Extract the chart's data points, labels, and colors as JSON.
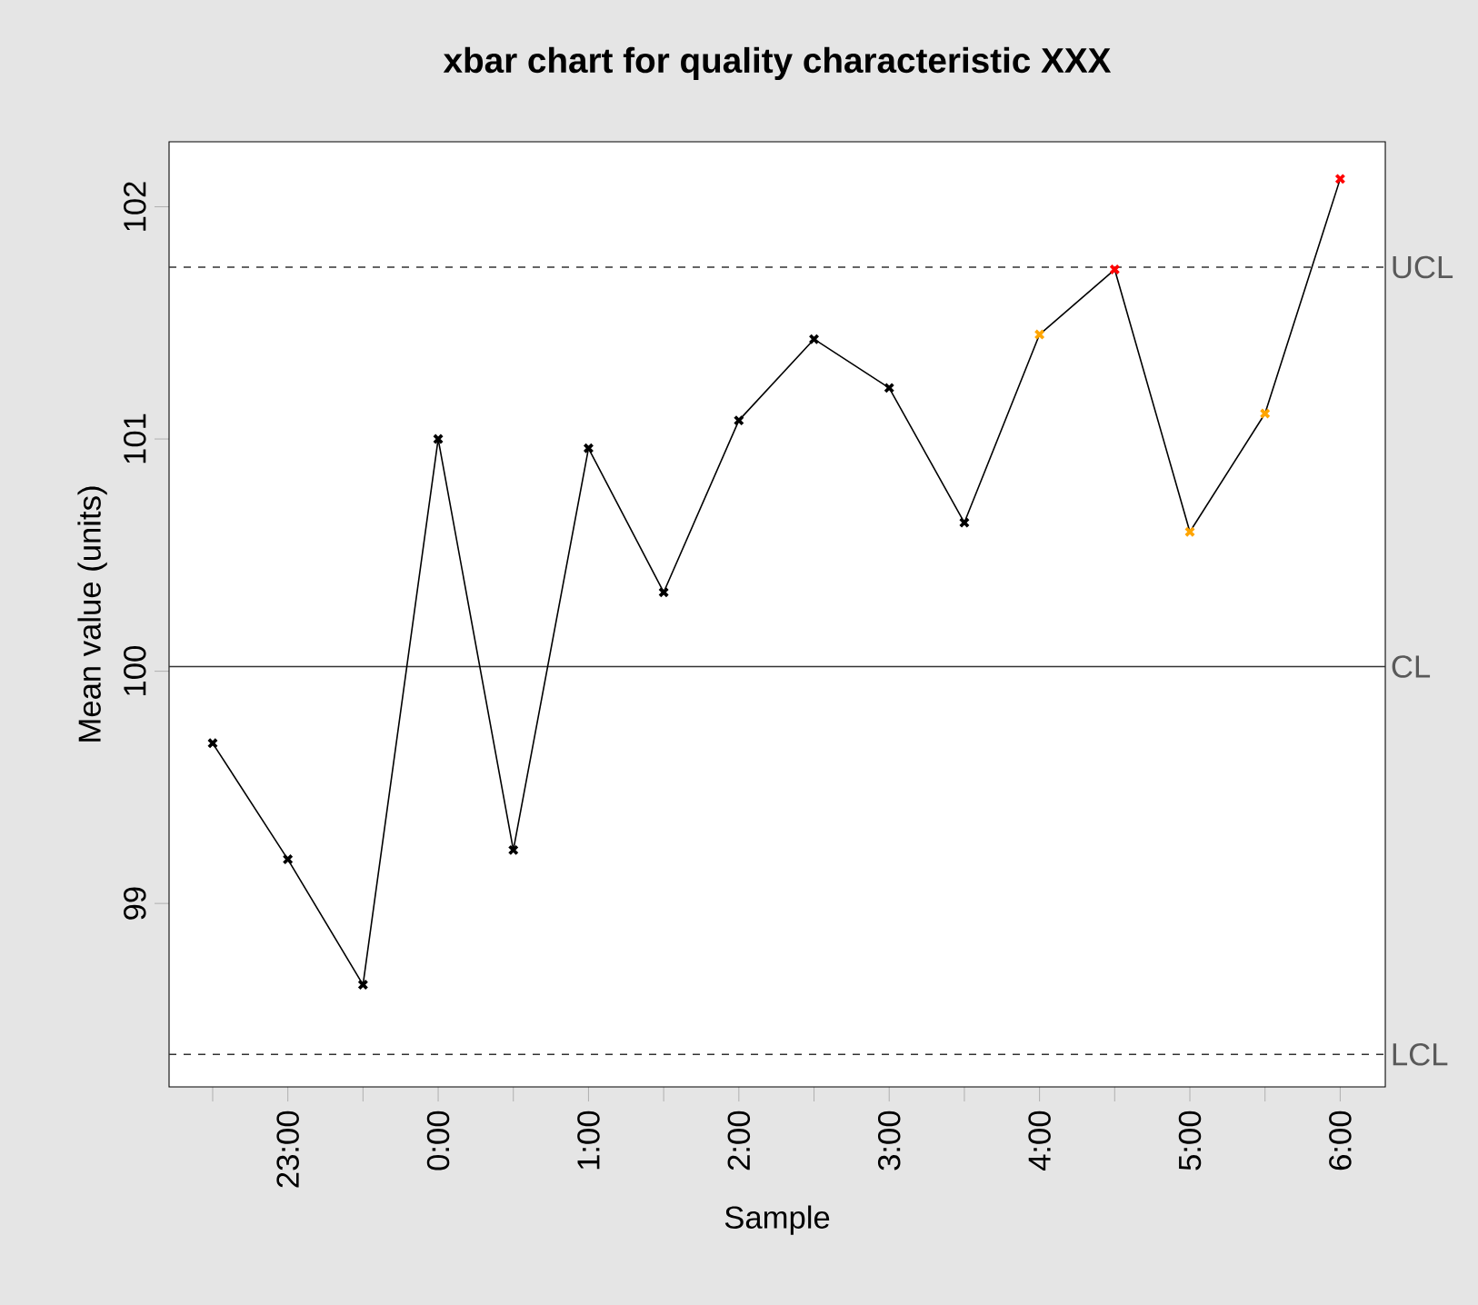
{
  "chart_data": {
    "type": "line",
    "title": "xbar chart for quality characteristic XXX",
    "xlabel": "Sample",
    "ylabel": "Mean value (units)",
    "categories": [
      null,
      "23:00",
      null,
      "0:00",
      null,
      "1:00",
      null,
      "2:00",
      null,
      "3:00",
      null,
      "4:00",
      null,
      "5:00",
      null,
      "6:00"
    ],
    "series": [
      {
        "color": "#000000",
        "colors": [
          "#000000",
          "#000000",
          "#000000",
          "#000000",
          "#000000",
          "#000000",
          "#000000",
          "#000000",
          "#000000",
          "#000000",
          "#000000",
          "#ffa500",
          "#ff0000",
          "#ffa500",
          "#ffa500",
          "#ff0000"
        ],
        "values": [
          99.69,
          99.19,
          98.65,
          101.0,
          99.23,
          100.96,
          100.34,
          101.08,
          101.43,
          101.22,
          100.64,
          101.45,
          101.73,
          100.6,
          101.11,
          102.12
        ]
      }
    ],
    "ylim": [
      98.21,
      102.28
    ],
    "yticks": [
      99,
      100,
      101,
      102
    ],
    "marker": "cross",
    "line_style": "solid",
    "grid": false,
    "ref_lines": [
      {
        "axis": "y",
        "value": 101.74,
        "label": "UCL",
        "line_style": "dashed"
      },
      {
        "axis": "y",
        "value": 100.02,
        "label": "CL",
        "line_style": "solid"
      },
      {
        "axis": "y",
        "value": 98.35,
        "label": "LCL",
        "line_style": "dashed"
      }
    ]
  }
}
